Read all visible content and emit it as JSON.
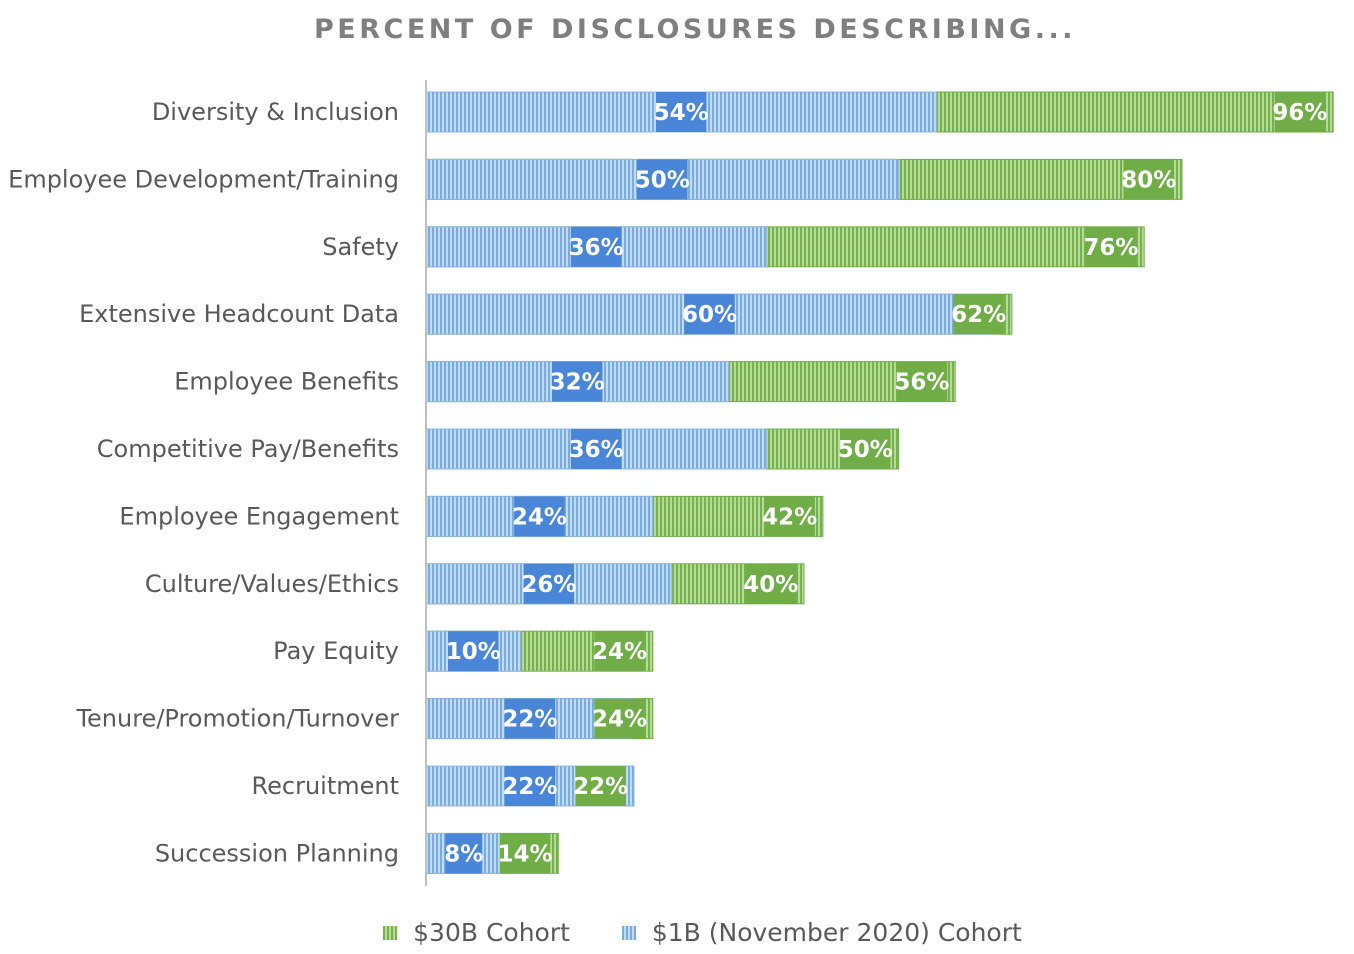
{
  "chart_data": {
    "type": "bar",
    "orientation": "horizontal",
    "stacked": "overlay",
    "title": "PERCENT OF DISCLOSURES DESCRIBING...",
    "categories": [
      "Diversity & Inclusion",
      "Employee Development/Training",
      "Safety",
      "Extensive Headcount Data",
      "Employee Benefits",
      "Competitive Pay/Benefits",
      "Employee Engagement",
      "Culture/Values/Ethics",
      "Pay Equity",
      "Tenure/Promotion/Turnover",
      "Recruitment",
      "Succession Planning"
    ],
    "series": [
      {
        "name": "$30B Cohort",
        "values": [
          96,
          80,
          76,
          62,
          56,
          50,
          42,
          40,
          24,
          24,
          22,
          14
        ],
        "labels": [
          "96%",
          "80%",
          "76%",
          "62%",
          "56%",
          "50%",
          "42%",
          "40%",
          "24%",
          "24%",
          "22%",
          "14%"
        ]
      },
      {
        "name": "$1B (November 2020) Cohort",
        "values": [
          54,
          50,
          36,
          60,
          32,
          36,
          24,
          26,
          10,
          22,
          22,
          8
        ],
        "labels": [
          "54%",
          "50%",
          "36%",
          "60%",
          "32%",
          "36%",
          "24%",
          "26%",
          "10%",
          "22%",
          "22%",
          "8%"
        ]
      }
    ],
    "xlim": [
      0,
      100
    ],
    "grid": false,
    "legend_position": "bottom",
    "colors": {
      "green": "#70ad47",
      "green_light": "#a9d18e",
      "blue": "#4a86d8",
      "blue_light": "#9dc3e6"
    }
  }
}
